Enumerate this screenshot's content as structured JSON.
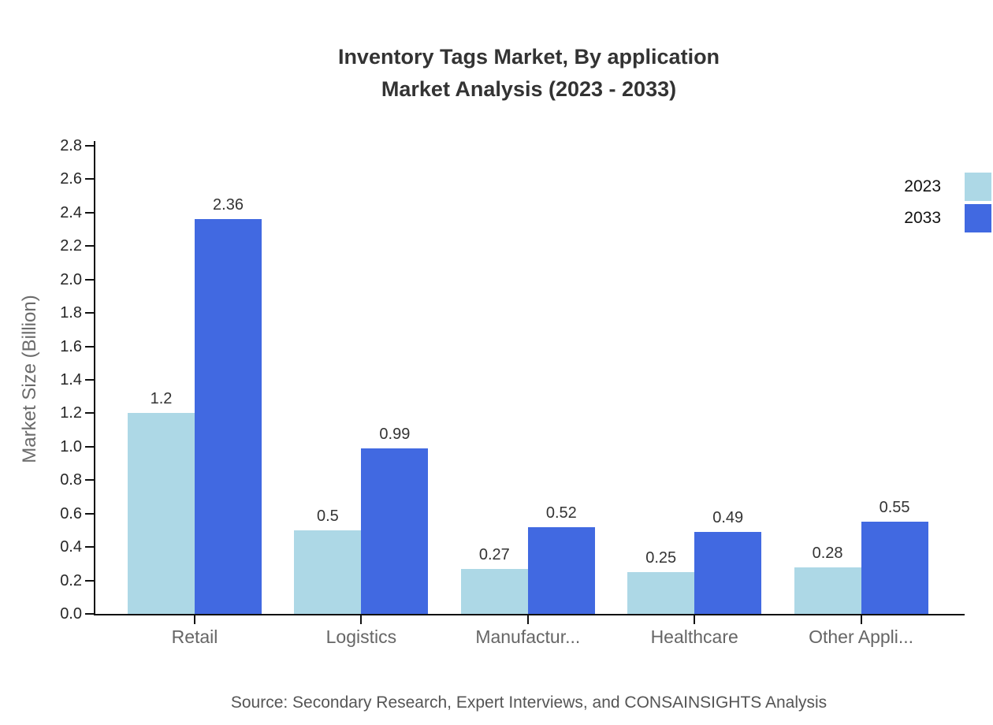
{
  "title": {
    "line1": "Inventory Tags Market, By application",
    "line2": "Market Analysis (2023 - 2033)"
  },
  "source": "Source: Secondary Research, Expert Interviews, and CONSAINSIGHTS Analysis",
  "chart_data": {
    "type": "bar",
    "title": "Inventory Tags Market, By application Market Analysis (2023 - 2033)",
    "categories": [
      "Retail",
      "Logistics",
      "Manufactur...",
      "Healthcare",
      "Other Appli..."
    ],
    "series": [
      {
        "name": "2023",
        "color": "#ADD8E6",
        "values": [
          1.2,
          0.5,
          0.27,
          0.25,
          0.28
        ],
        "labels": [
          "1.2",
          "0.5",
          "0.27",
          "0.25",
          "0.28"
        ]
      },
      {
        "name": "2033",
        "color": "#4169E1",
        "values": [
          2.36,
          0.99,
          0.52,
          0.49,
          0.55
        ],
        "labels": [
          "2.36",
          "0.99",
          "0.52",
          "0.49",
          "0.55"
        ]
      }
    ],
    "xlabel": "",
    "ylabel": "Market Size (Billion)",
    "ylim": [
      0,
      2.8
    ],
    "yticks": [
      "0.0",
      "0.2",
      "0.4",
      "0.6",
      "0.8",
      "1.0",
      "1.2",
      "1.4",
      "1.6",
      "1.8",
      "2.0",
      "2.2",
      "2.4",
      "2.6",
      "2.8"
    ],
    "grid": false,
    "legend_position": "top-right"
  },
  "colors": {
    "axis": "#111111",
    "title_text": "#333333",
    "tick_text": "#262626",
    "category_text": "#666666",
    "source_text": "#555555",
    "series_2023": "#ADD8E6",
    "series_2033": "#4169E1"
  }
}
